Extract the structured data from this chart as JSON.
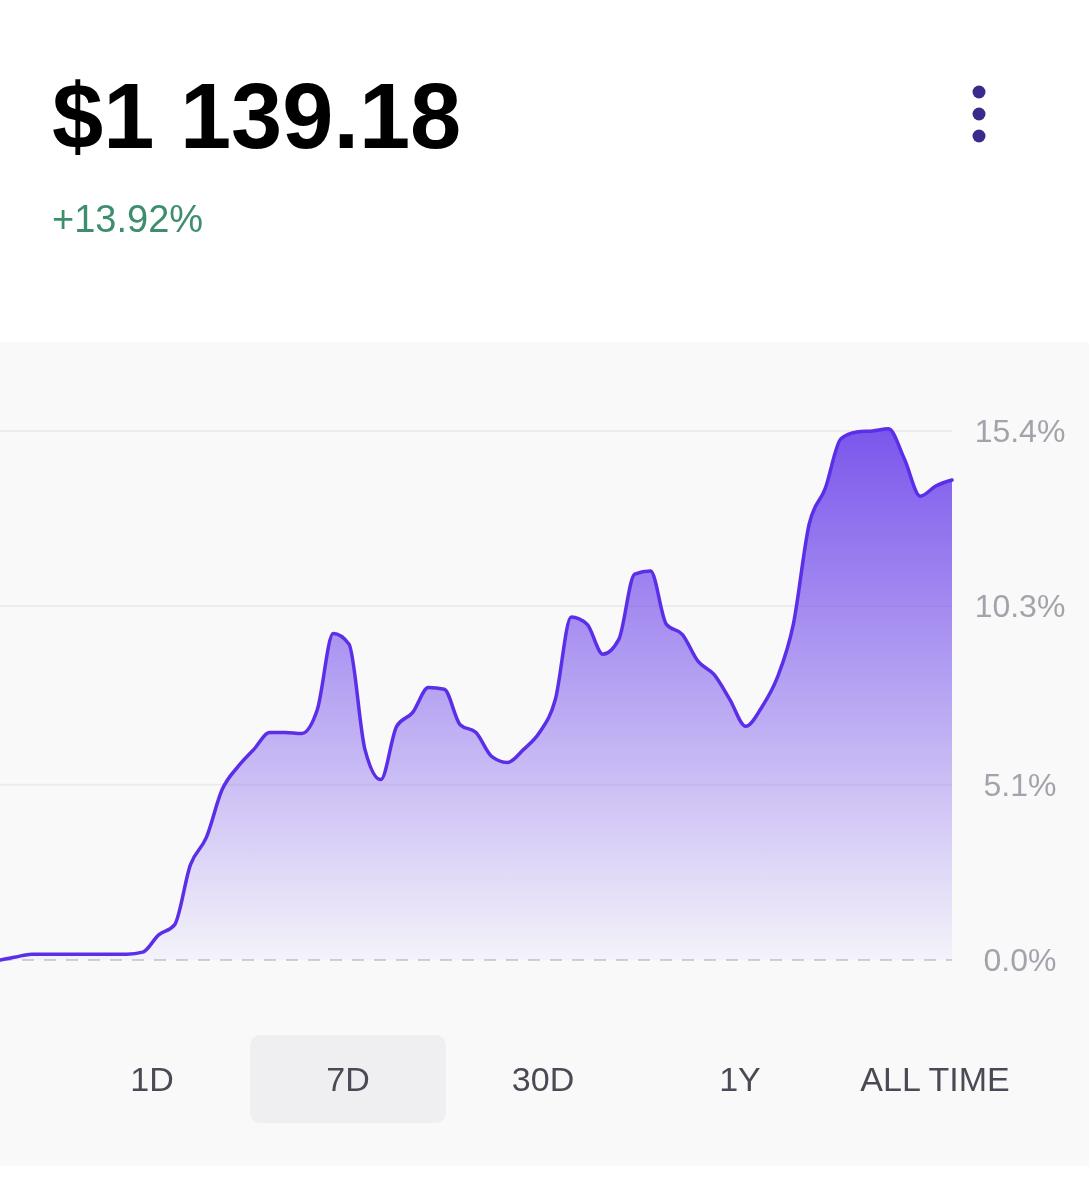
{
  "chart_data": {
    "type": "area",
    "title": "$1 139.18",
    "subtitle": "+13.92%",
    "categories": [
      null,
      null,
      null,
      null,
      null,
      null,
      null,
      null,
      null,
      null,
      null,
      null,
      null,
      null,
      null,
      null,
      null,
      null,
      null,
      null,
      null,
      null,
      null,
      null,
      null,
      null,
      null,
      null,
      null,
      null,
      null,
      null,
      null,
      null,
      null,
      null,
      null,
      null,
      null,
      null,
      null,
      null,
      null,
      null,
      null,
      null,
      null,
      null,
      null,
      null,
      null,
      null,
      null,
      null,
      null,
      null,
      null,
      null,
      null,
      null,
      null
    ],
    "series": [
      {
        "color": "#5b2ee8",
        "values": [
          0,
          0.09,
          0.17,
          0.17,
          0.17,
          0.17,
          0.17,
          0.17,
          0.17,
          0.23,
          0.73,
          1.02,
          2.77,
          3.56,
          4.96,
          5.63,
          6.13,
          6.62,
          6.62,
          6.59,
          7.29,
          9.5,
          9.19,
          6.13,
          5.25,
          6.8,
          7.2,
          7.93,
          7.88,
          6.85,
          6.62,
          5.92,
          5.75,
          6.13,
          6.62,
          7.58,
          9.98,
          9.77,
          8.9,
          9.33,
          11.23,
          11.32,
          9.77,
          9.48,
          8.69,
          8.31,
          7.58,
          6.8,
          7.35,
          8.23,
          9.77,
          12.69,
          13.71,
          15.17,
          15.37,
          15.4,
          15.46,
          14.58,
          13.5,
          13.8,
          13.97
        ]
      }
    ],
    "ylim": [
      0,
      17.9
    ],
    "yticks": [
      {
        "value": 0,
        "label": "0.0%"
      },
      {
        "value": 5.1,
        "label": "5.1%"
      },
      {
        "value": 10.3,
        "label": "10.3%"
      },
      {
        "value": 15.4,
        "label": "15.4%"
      }
    ],
    "grid": "y",
    "tick_labels": "y",
    "annotations": [
      "1D",
      "7D",
      "30D",
      "1Y",
      "ALL TIME"
    ]
  }
}
